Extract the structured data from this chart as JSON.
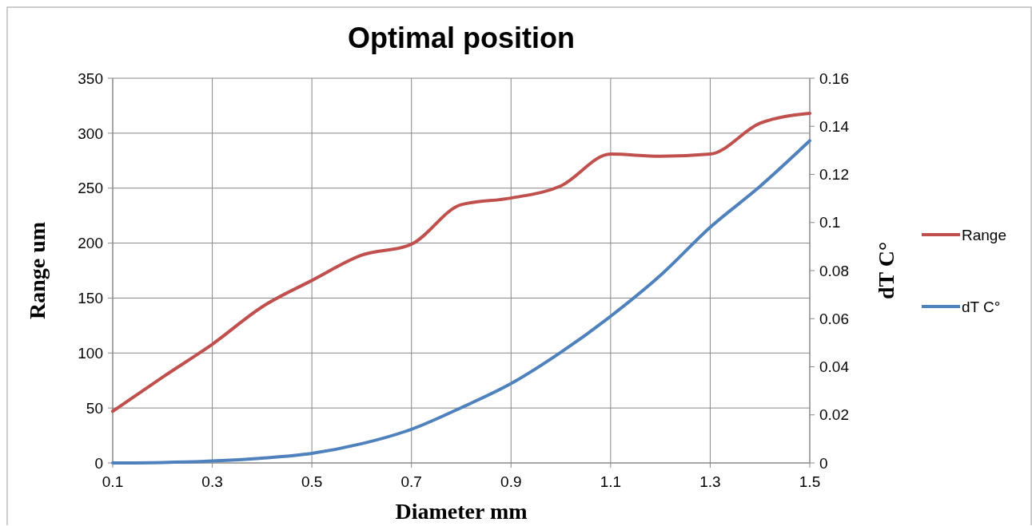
{
  "chart_data": {
    "type": "line",
    "title": "Optimal position",
    "xlabel": "Diameter mm",
    "ylabel": "Range um",
    "y2label": "dT C°",
    "x": [
      0.1,
      0.2,
      0.3,
      0.4,
      0.5,
      0.6,
      0.7,
      0.8,
      0.9,
      1.0,
      1.1,
      1.2,
      1.3,
      1.4,
      1.5
    ],
    "series": [
      {
        "name": "Range",
        "color": "#c0504d",
        "values": [
          47,
          78,
          108,
          142,
          166,
          189,
          199,
          235,
          241,
          252,
          281,
          279,
          281,
          309,
          318
        ]
      },
      {
        "name": "dT C°",
        "color": "#4f81bd",
        "axis": "y2",
        "values": [
          0,
          0.0002,
          0.0008,
          0.002,
          0.004,
          0.008,
          0.014,
          0.023,
          0.033,
          0.046,
          0.061,
          0.078,
          0.098,
          0.115,
          0.134
        ]
      }
    ],
    "xlim": [
      0.1,
      1.5
    ],
    "xticks": [
      0.1,
      0.3,
      0.5,
      0.7,
      0.9,
      1.1,
      1.3,
      1.5
    ],
    "ylim": [
      0,
      350
    ],
    "yticks": [
      0,
      50,
      100,
      150,
      200,
      250,
      300,
      350
    ],
    "y2lim": [
      0,
      0.16
    ],
    "y2ticks": [
      0,
      0.02,
      0.04,
      0.06,
      0.08,
      0.1,
      0.12,
      0.14,
      0.16
    ],
    "grid": true,
    "legend": "right",
    "marker": "none",
    "line_style": "solid"
  }
}
